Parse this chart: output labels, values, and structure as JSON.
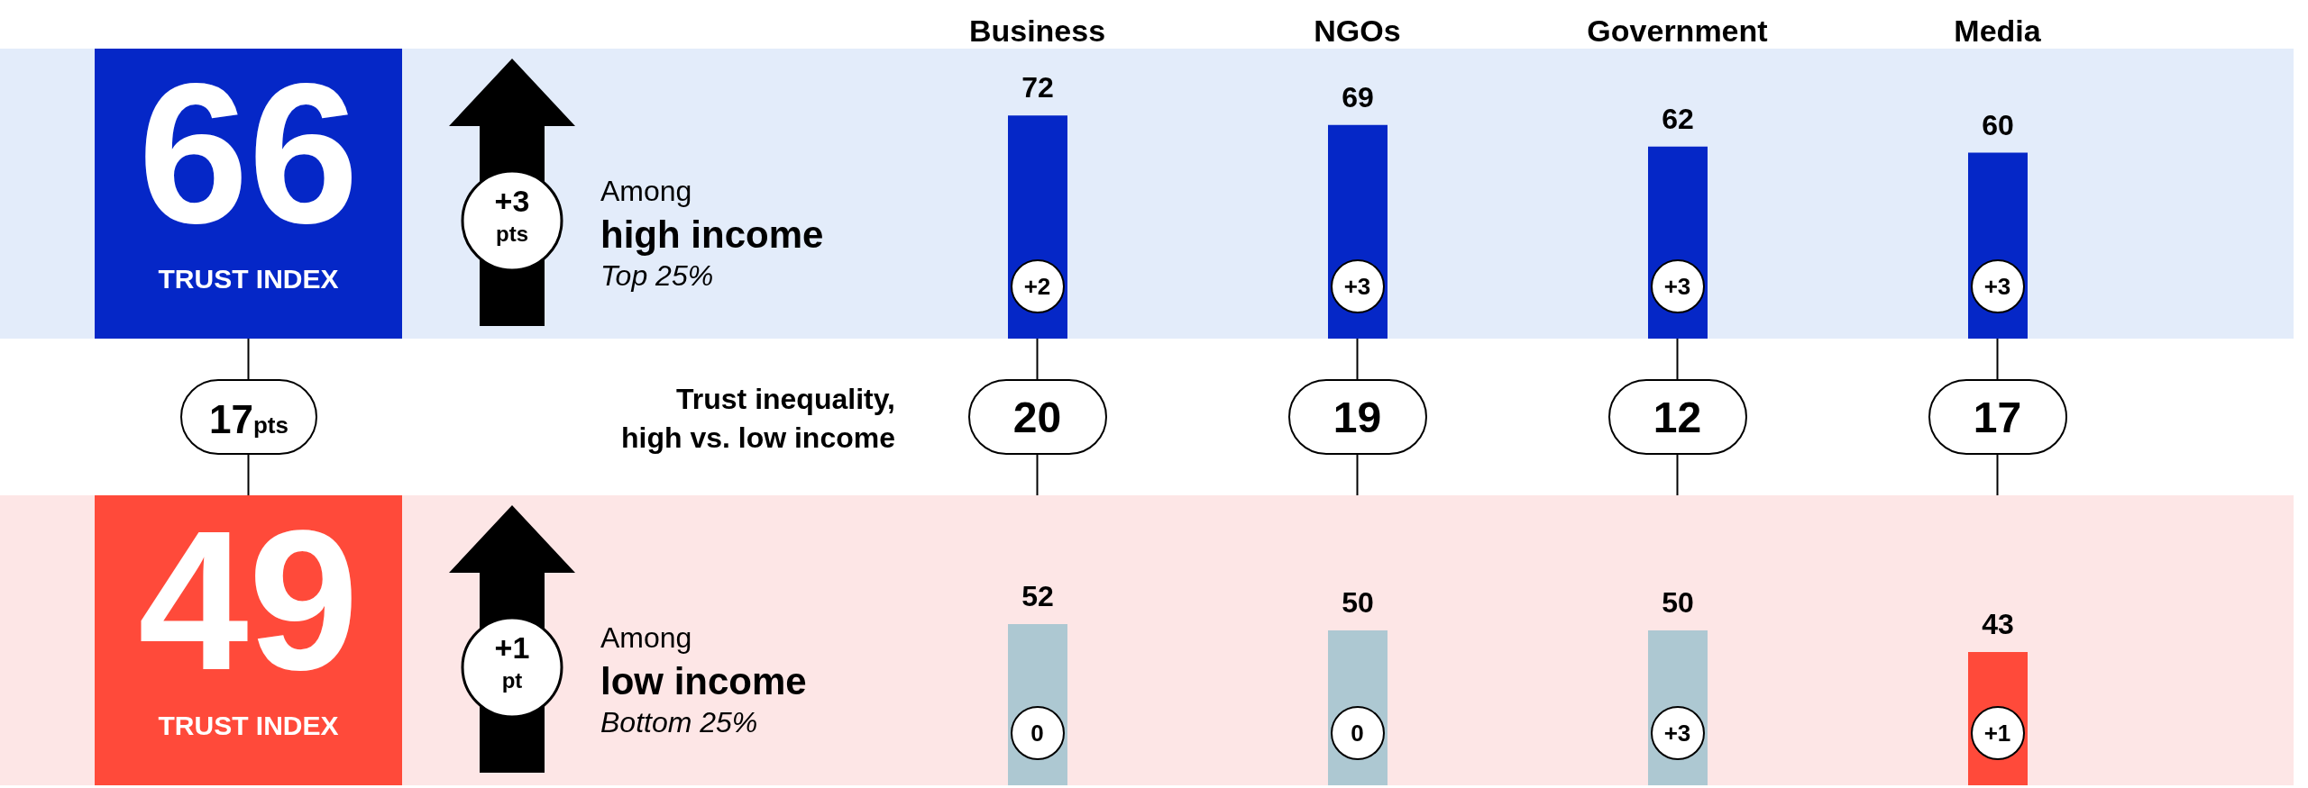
{
  "chart_data": [
    {
      "type": "bar",
      "categories": [
        "Business",
        "NGOs",
        "Government",
        "Media"
      ],
      "values": [
        72,
        69,
        62,
        60
      ],
      "color": "#0527c7",
      "data_labels": true,
      "annotations": [
        "66",
        "TRUST INDEX",
        "+3",
        "pts",
        "Among",
        "high income",
        "Top 25%",
        "+2",
        "+3",
        "+3",
        "+3"
      ]
    },
    {
      "type": "other",
      "values": [
        20,
        19,
        12,
        17
      ],
      "data_labels": true,
      "annotations": [
        "17",
        "pts",
        "Trust inequality, high vs. low income"
      ]
    },
    {
      "type": "bar",
      "categories": [
        null,
        null,
        null,
        null
      ],
      "values": [
        52,
        50,
        50,
        43
      ],
      "colors": [
        "#adc8d2",
        "#adc8d2",
        "#adc8d2",
        "#ff4a3a"
      ],
      "data_labels": true,
      "annotations": [
        "49",
        "TRUST INDEX",
        "+1",
        "pt",
        "Among",
        "low income",
        "Bottom 25%",
        "0",
        "0",
        "+3",
        "+1"
      ]
    }
  ]
}
